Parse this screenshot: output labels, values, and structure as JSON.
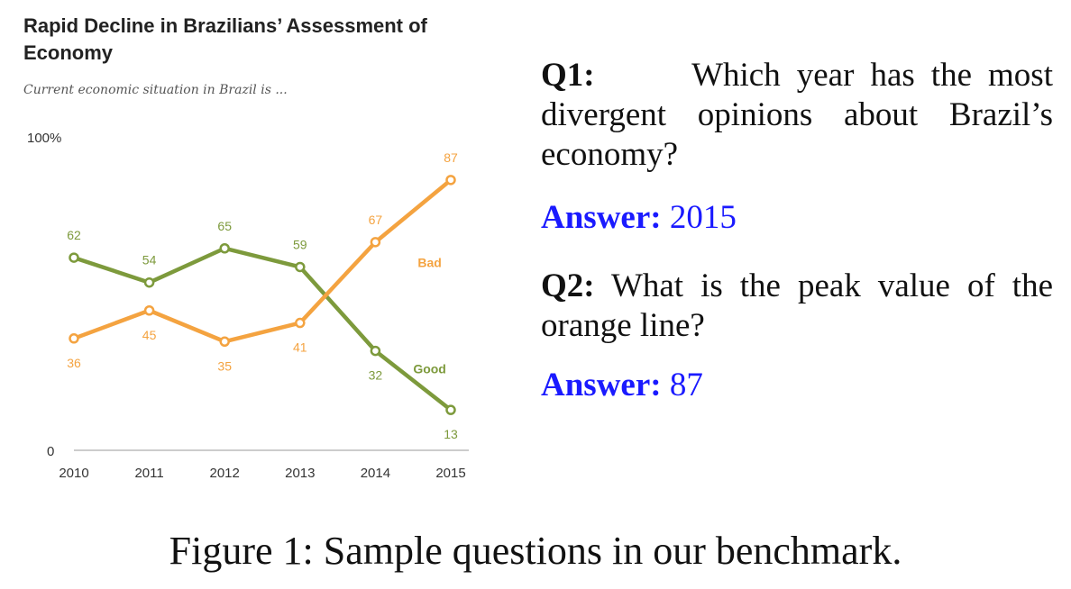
{
  "chart_data": {
    "type": "line",
    "title": "Rapid Decline in Brazilians’ Assessment of Economy",
    "subtitle": "Current economic situation in Brazil is ...",
    "x": [
      "2010",
      "2011",
      "2012",
      "2013",
      "2014",
      "2015"
    ],
    "ylim": [
      0,
      100
    ],
    "y_tick_labels": [
      "0",
      "100%"
    ],
    "grid": false,
    "series": [
      {
        "name": "Good",
        "values": [
          62,
          54,
          65,
          59,
          32,
          13
        ],
        "color": "#7d9a3c"
      },
      {
        "name": "Bad",
        "values": [
          36,
          45,
          35,
          41,
          67,
          87
        ],
        "color": "#f4a340"
      }
    ]
  },
  "qa": [
    {
      "q_label": "Q1:",
      "q_text": "Which year has the most divergent opinions about Brazil’s economy?",
      "a_label": "Answer:",
      "a_text": "2015"
    },
    {
      "q_label": "Q2:",
      "q_text": "What is the peak value of the orange line?",
      "a_label": "Answer:",
      "a_text": "87"
    }
  ],
  "caption": "Figure 1: Sample questions in our benchmark."
}
